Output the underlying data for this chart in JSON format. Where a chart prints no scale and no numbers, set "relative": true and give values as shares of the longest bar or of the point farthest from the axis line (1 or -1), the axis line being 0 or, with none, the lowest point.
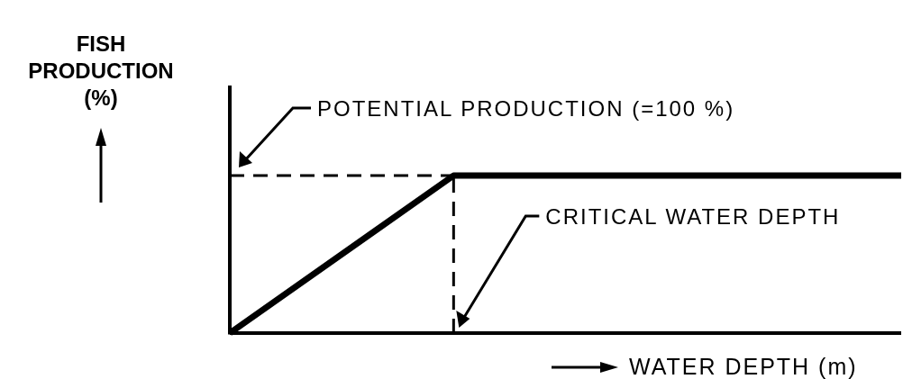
{
  "chart_data": {
    "type": "line",
    "relative": true,
    "xlabel": "WATER DEPTH (m)",
    "ylabel": "FISH PRODUCTION (%)",
    "categories": [
      null,
      null,
      null,
      null
    ],
    "series": [
      {
        "color": "#000000",
        "values": [
          0,
          1,
          1,
          1
        ]
      }
    ],
    "line_style": "solid",
    "marker": "none",
    "annotations": [
      "CRITICAL WATER DEPTH"
    ],
    "ref_lines": [
      {
        "axis": "y",
        "value": 1,
        "label": "POTENTIAL PRODUCTION (=100 %)",
        "color": "#000000",
        "line_style": "dashed"
      }
    ]
  }
}
